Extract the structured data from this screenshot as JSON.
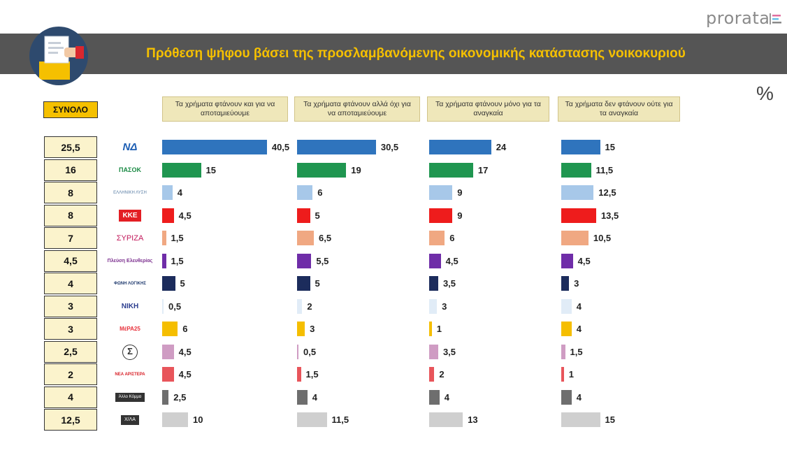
{
  "brand": "prorata",
  "title": "Πρόθεση ψήφου βάσει της προσλαμβανόμενης οικονομικής κατάστασης νοικοκυριού",
  "unit_symbol": "%",
  "total_label": "ΣΥΝΟΛΟ",
  "colors": {
    "title_band": "#555555",
    "title_text": "#f5c000",
    "total_badge": "#f5c000",
    "total_cell": "#fbf3cc",
    "header_bg": "#efe7ba"
  },
  "chart_data": {
    "type": "bar",
    "orientation": "horizontal",
    "title": "Πρόθεση ψήφου βάσει της προσλαμβανόμενης οικονομικής κατάστασης νοικοκυριού",
    "categories": [
      "ΝΔ",
      "ΠΑΣΟΚ",
      "Ελληνική Λύση",
      "ΚΚΕ",
      "ΣΥΡΙΖΑ",
      "Πλεύση Ελευθερίας",
      "Φωνή Λογικής",
      "ΝΙΚΗ",
      "ΜέΡΑ25",
      "Κίνημα Δημοκρατίας",
      "Νέα Αριστερά",
      "Άλλο Κόμμα",
      "Χ/ΛΑ"
    ],
    "logo_texts": [
      "ΝΔ",
      "ΠΑΣΟΚ",
      "ΕΛΛΗΝΙΚΗ ΛΥΣΗ",
      "ΚΚΕ",
      "ΣΥΡΙΖΑ",
      "Πλεύση Ελευθερίας",
      "ΦΩΝΗ ΛΟΓΙΚΗΣ",
      "ΝΙΚΗ",
      "ΜέΡΑ25",
      "Σ",
      "ΝΕΑ ΑΡΙΣΤΕΡΑ",
      "Άλλο Κόμμα",
      "Χ/ΛΑ"
    ],
    "total": [
      "25,5",
      "16",
      "8",
      "8",
      "7",
      "4,5",
      "4",
      "3",
      "3",
      "2,5",
      "2",
      "4",
      "12,5"
    ],
    "colors": [
      "#2f74bd",
      "#1f9650",
      "#a7c8e9",
      "#ee1c1c",
      "#f0a882",
      "#6f2da8",
      "#1c2c5c",
      "#e1ecf7",
      "#f5be00",
      "#cf9cc3",
      "#e8555b",
      "#6e6e6e",
      "#cfcfcf"
    ],
    "series": [
      {
        "name": "Τα χρήματα φτάνουν και για να αποταμιεύουμε",
        "values": [
          40.5,
          15,
          4,
          4.5,
          1.5,
          1.5,
          5,
          0.5,
          6,
          4.5,
          4.5,
          2.5,
          10
        ],
        "labels": [
          "40,5",
          "15",
          "4",
          "4,5",
          "1,5",
          "1,5",
          "5",
          "0,5",
          "6",
          "4,5",
          "4,5",
          "2,5",
          "10"
        ]
      },
      {
        "name": "Τα χρήματα φτάνουν αλλά όχι για να αποταμιεύουμε",
        "values": [
          30.5,
          19,
          6,
          5,
          6.5,
          5.5,
          5,
          2,
          3,
          0.5,
          1.5,
          4,
          11.5
        ],
        "labels": [
          "30,5",
          "19",
          "6",
          "5",
          "6,5",
          "5,5",
          "5",
          "2",
          "3",
          "0,5",
          "1,5",
          "4",
          "11,5"
        ]
      },
      {
        "name": "Τα χρήματα φτάνουν μόνο για τα αναγκαία",
        "values": [
          24,
          17,
          9,
          9,
          6,
          4.5,
          3.5,
          3,
          1,
          3.5,
          2,
          4,
          13
        ],
        "labels": [
          "24",
          "17",
          "9",
          "9",
          "6",
          "4,5",
          "3,5",
          "3",
          "1",
          "3,5",
          "2",
          "4",
          "13"
        ]
      },
      {
        "name": "Τα χρήματα δεν φτάνουν ούτε για τα αναγκαία",
        "values": [
          15,
          11.5,
          12.5,
          13.5,
          10.5,
          4.5,
          3,
          4,
          4,
          1.5,
          1,
          4,
          15
        ],
        "labels": [
          "15",
          "11,5",
          "12,5",
          "13,5",
          "10,5",
          "4,5",
          "3",
          "4",
          "4",
          "1,5",
          "1",
          "4",
          "15"
        ]
      }
    ]
  }
}
